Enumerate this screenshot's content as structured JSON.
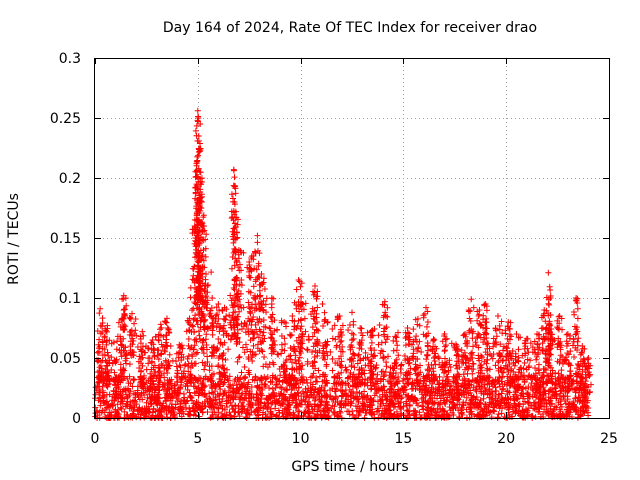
{
  "chart_data": {
    "type": "scatter",
    "title": "Day 164 of 2024, Rate Of TEC Index for receiver drao",
    "xlabel": "GPS time / hours",
    "ylabel": "ROTI / TECUs",
    "xlim": [
      0,
      25
    ],
    "ylim": [
      0,
      0.3
    ],
    "xticks": [
      0,
      5,
      10,
      15,
      20,
      25
    ],
    "xtick_labels": [
      "0",
      "5",
      "10",
      "15",
      "20",
      "25"
    ],
    "yticks": [
      0,
      0.05,
      0.1,
      0.15,
      0.2,
      0.25,
      0.3
    ],
    "ytick_labels": [
      "0",
      "0.05",
      "0.1",
      "0.15",
      "0.2",
      "0.25",
      "0.3"
    ],
    "grid": true,
    "marker": "+",
    "series": [
      {
        "name": "ROTI",
        "color": "#ff0000",
        "x_range": [
          0,
          24.0
        ],
        "baseline_max": 0.035,
        "envelope": {
          "x": [
            0,
            0.2,
            0.5,
            1.0,
            1.5,
            2.0,
            2.5,
            3.0,
            3.5,
            4.0,
            4.5,
            4.9,
            5.0,
            5.1,
            5.3,
            5.6,
            6.0,
            6.5,
            6.8,
            7.0,
            7.5,
            7.9,
            8.2,
            8.5,
            9.0,
            9.5,
            10.0,
            10.5,
            11.0,
            11.5,
            12.0,
            12.5,
            13.0,
            13.5,
            14.0,
            14.5,
            15.0,
            15.5,
            16.0,
            16.5,
            17.0,
            17.5,
            18.0,
            18.3,
            18.7,
            19.0,
            19.5,
            20.0,
            20.5,
            21.0,
            21.5,
            21.8,
            22.0,
            22.2,
            22.5,
            23.0,
            23.4,
            23.8,
            24.0
          ],
          "y": [
            0.05,
            0.09,
            0.075,
            0.07,
            0.1,
            0.085,
            0.06,
            0.07,
            0.08,
            0.06,
            0.085,
            0.18,
            0.255,
            0.21,
            0.17,
            0.13,
            0.1,
            0.095,
            0.205,
            0.16,
            0.13,
            0.15,
            0.12,
            0.1,
            0.085,
            0.09,
            0.12,
            0.1,
            0.11,
            0.085,
            0.08,
            0.09,
            0.075,
            0.075,
            0.09,
            0.07,
            0.075,
            0.08,
            0.09,
            0.065,
            0.07,
            0.06,
            0.095,
            0.07,
            0.09,
            0.095,
            0.085,
            0.08,
            0.07,
            0.065,
            0.07,
            0.09,
            0.12,
            0.1,
            0.085,
            0.07,
            0.1,
            0.055,
            0.05
          ]
        },
        "peaks": [
          {
            "x": 0.25,
            "y": 0.091
          },
          {
            "x": 0.6,
            "y": 0.077
          },
          {
            "x": 1.3,
            "y": 0.082
          },
          {
            "x": 1.4,
            "y": 0.102
          },
          {
            "x": 1.8,
            "y": 0.087
          },
          {
            "x": 2.3,
            "y": 0.072
          },
          {
            "x": 2.8,
            "y": 0.065
          },
          {
            "x": 3.2,
            "y": 0.078
          },
          {
            "x": 3.5,
            "y": 0.083
          },
          {
            "x": 4.1,
            "y": 0.061
          },
          {
            "x": 4.6,
            "y": 0.083
          },
          {
            "x": 4.85,
            "y": 0.16
          },
          {
            "x": 4.95,
            "y": 0.205
          },
          {
            "x": 5.0,
            "y": 0.256
          },
          {
            "x": 5.03,
            "y": 0.25
          },
          {
            "x": 5.05,
            "y": 0.235
          },
          {
            "x": 5.1,
            "y": 0.205
          },
          {
            "x": 5.2,
            "y": 0.18
          },
          {
            "x": 5.3,
            "y": 0.16
          },
          {
            "x": 5.4,
            "y": 0.12
          },
          {
            "x": 5.7,
            "y": 0.1
          },
          {
            "x": 6.0,
            "y": 0.095
          },
          {
            "x": 6.3,
            "y": 0.092
          },
          {
            "x": 6.75,
            "y": 0.207
          },
          {
            "x": 6.78,
            "y": 0.18
          },
          {
            "x": 6.85,
            "y": 0.172
          },
          {
            "x": 7.0,
            "y": 0.14
          },
          {
            "x": 7.5,
            "y": 0.13
          },
          {
            "x": 7.7,
            "y": 0.135
          },
          {
            "x": 7.9,
            "y": 0.152
          },
          {
            "x": 8.1,
            "y": 0.12
          },
          {
            "x": 8.6,
            "y": 0.1
          },
          {
            "x": 9.2,
            "y": 0.08
          },
          {
            "x": 9.6,
            "y": 0.085
          },
          {
            "x": 9.9,
            "y": 0.115
          },
          {
            "x": 10.1,
            "y": 0.095
          },
          {
            "x": 10.7,
            "y": 0.11
          },
          {
            "x": 11.2,
            "y": 0.082
          },
          {
            "x": 11.9,
            "y": 0.085
          },
          {
            "x": 12.5,
            "y": 0.088
          },
          {
            "x": 12.9,
            "y": 0.075
          },
          {
            "x": 13.5,
            "y": 0.073
          },
          {
            "x": 14.1,
            "y": 0.097
          },
          {
            "x": 14.6,
            "y": 0.068
          },
          {
            "x": 15.2,
            "y": 0.075
          },
          {
            "x": 15.6,
            "y": 0.082
          },
          {
            "x": 16.1,
            "y": 0.092
          },
          {
            "x": 16.5,
            "y": 0.065
          },
          {
            "x": 17.0,
            "y": 0.07
          },
          {
            "x": 17.6,
            "y": 0.06
          },
          {
            "x": 18.0,
            "y": 0.07
          },
          {
            "x": 18.3,
            "y": 0.099
          },
          {
            "x": 18.7,
            "y": 0.09
          },
          {
            "x": 19.0,
            "y": 0.095
          },
          {
            "x": 19.6,
            "y": 0.085
          },
          {
            "x": 20.1,
            "y": 0.08
          },
          {
            "x": 20.5,
            "y": 0.07
          },
          {
            "x": 21.0,
            "y": 0.066
          },
          {
            "x": 21.5,
            "y": 0.07
          },
          {
            "x": 21.85,
            "y": 0.09
          },
          {
            "x": 22.05,
            "y": 0.121
          },
          {
            "x": 22.15,
            "y": 0.1
          },
          {
            "x": 22.6,
            "y": 0.085
          },
          {
            "x": 23.0,
            "y": 0.07
          },
          {
            "x": 23.4,
            "y": 0.1
          },
          {
            "x": 23.7,
            "y": 0.06
          },
          {
            "x": 24.0,
            "y": 0.05
          }
        ]
      }
    ]
  }
}
